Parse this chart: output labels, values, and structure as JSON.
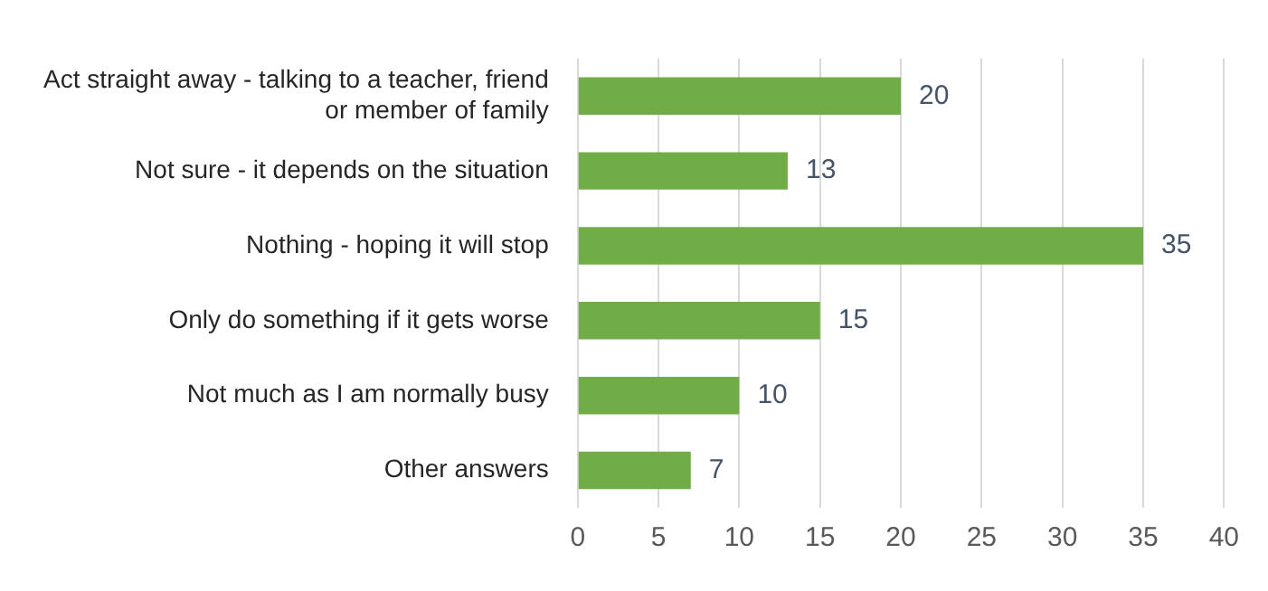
{
  "chart_data": {
    "type": "bar",
    "orientation": "horizontal",
    "categories": [
      "Act straight away - talking to a teacher, friend or member of family",
      "Not sure - it depends on the situation",
      "Nothing - hoping it will stop",
      "Only do something if it gets worse",
      "Not much as I am normally busy",
      "Other answers"
    ],
    "values": [
      20,
      13,
      35,
      15,
      10,
      7
    ],
    "color": "#70ad47",
    "xlim": [
      0,
      40
    ],
    "xticks": [
      0,
      5,
      10,
      15,
      20,
      25,
      30,
      35,
      40
    ],
    "grid": "x",
    "data_labels": true,
    "legend": false
  }
}
